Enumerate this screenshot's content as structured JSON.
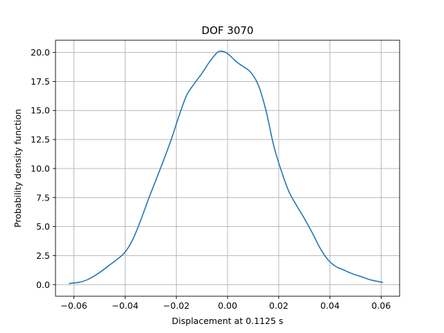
{
  "chart_data": {
    "type": "line",
    "title": "DOF 3070",
    "xlabel": "Displacement at 0.1125 s",
    "ylabel": "Probability density function",
    "xlim": [
      -0.0672,
      0.0672
    ],
    "ylim": [
      -1.0,
      21.05
    ],
    "grid": true,
    "xticks": [
      -0.06,
      -0.04,
      -0.02,
      0.0,
      0.02,
      0.04,
      0.06
    ],
    "xtick_labels": [
      "−0.06",
      "−0.04",
      "−0.02",
      "0.00",
      "0.02",
      "0.04",
      "0.06"
    ],
    "yticks": [
      0.0,
      2.5,
      5.0,
      7.5,
      10.0,
      12.5,
      15.0,
      17.5,
      20.0
    ],
    "ytick_labels": [
      "0.0",
      "2.5",
      "5.0",
      "7.5",
      "10.0",
      "12.5",
      "15.0",
      "17.5",
      "20.0"
    ],
    "series": [
      {
        "color": "#1f77b4",
        "x": [
          -0.0618,
          -0.058,
          -0.055,
          -0.052,
          -0.049,
          -0.046,
          -0.043,
          -0.04,
          -0.037,
          -0.034,
          -0.031,
          -0.028,
          -0.025,
          -0.022,
          -0.019,
          -0.016,
          -0.013,
          -0.01,
          -0.007,
          -0.004,
          -0.002,
          0.0,
          0.002,
          0.004,
          0.006,
          0.009,
          0.012,
          0.015,
          0.018,
          0.021,
          0.024,
          0.027,
          0.03,
          0.033,
          0.036,
          0.039,
          0.042,
          0.045,
          0.048,
          0.052,
          0.056,
          0.0605
        ],
        "y": [
          0.1,
          0.2,
          0.4,
          0.75,
          1.2,
          1.7,
          2.2,
          2.8,
          3.9,
          5.5,
          7.3,
          9.0,
          10.7,
          12.5,
          14.5,
          16.3,
          17.3,
          18.2,
          19.2,
          20.0,
          20.1,
          19.9,
          19.5,
          19.1,
          18.8,
          18.3,
          17.2,
          15.0,
          12.0,
          9.8,
          8.0,
          6.8,
          5.7,
          4.5,
          3.2,
          2.2,
          1.6,
          1.3,
          1.0,
          0.7,
          0.4,
          0.2
        ]
      }
    ]
  }
}
